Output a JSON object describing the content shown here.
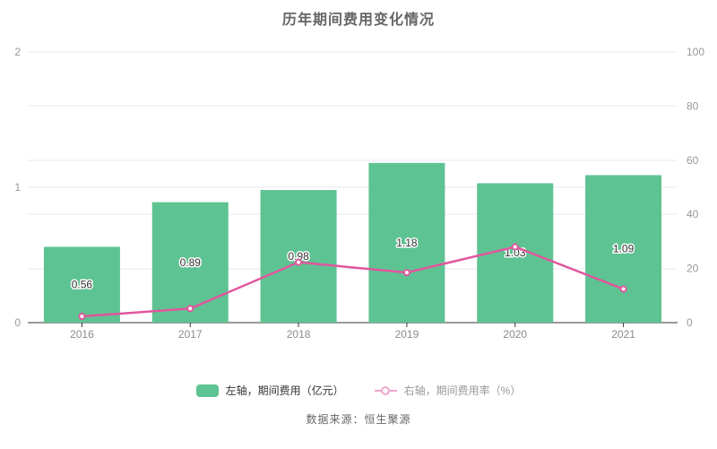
{
  "title": "历年期间费用变化情况",
  "source": "数据来源：恒生聚源",
  "legend": {
    "bar_label": "左轴，期间费用（亿元）",
    "line_label": "右轴，期间费用率（%）"
  },
  "colors": {
    "bar": "#5ec392",
    "line": "#e0569e",
    "marker_fill": "#ffffff",
    "legend_line_icon": "#eda7cd",
    "grid": "#e4e8f1",
    "axis_line": "#333333",
    "axis_label": "#999999",
    "x_label": "#8c8c8c",
    "bar_value_label": "#333333",
    "title_text": "#666666",
    "source_text": "#666666",
    "legend_text": "#333333",
    "legend_text_muted": "#999999"
  },
  "chart_data": {
    "type": "bar",
    "subtype": "bar-with-line-overlay",
    "title": "历年期间费用变化情况",
    "categories": [
      "2016",
      "2017",
      "2018",
      "2019",
      "2020",
      "2021"
    ],
    "series": [
      {
        "name": "左轴，期间费用（亿元）",
        "type": "bar",
        "axis": "left",
        "values": [
          0.56,
          0.89,
          0.98,
          1.18,
          1.03,
          1.09
        ],
        "labels": [
          "0.56",
          "0.89",
          "0.98",
          "1.18",
          "1.03",
          "1.09"
        ]
      },
      {
        "name": "右轴，期间费用率（%）",
        "type": "line",
        "axis": "right",
        "values": [
          2.3,
          5.2,
          22.3,
          18.5,
          28,
          12.4
        ]
      }
    ],
    "left_axis": {
      "min": 0,
      "max": 2,
      "tick_values": [
        0,
        1,
        2
      ],
      "tick_labels": [
        "0",
        "1",
        "2"
      ]
    },
    "right_axis": {
      "min": 0,
      "max": 100,
      "tick_values": [
        0,
        20,
        40,
        60,
        80,
        100
      ],
      "tick_labels": [
        "0",
        "20",
        "40",
        "60",
        "80",
        "100"
      ]
    },
    "grid": "horizontal gridlines only",
    "legend_position": "bottom"
  }
}
